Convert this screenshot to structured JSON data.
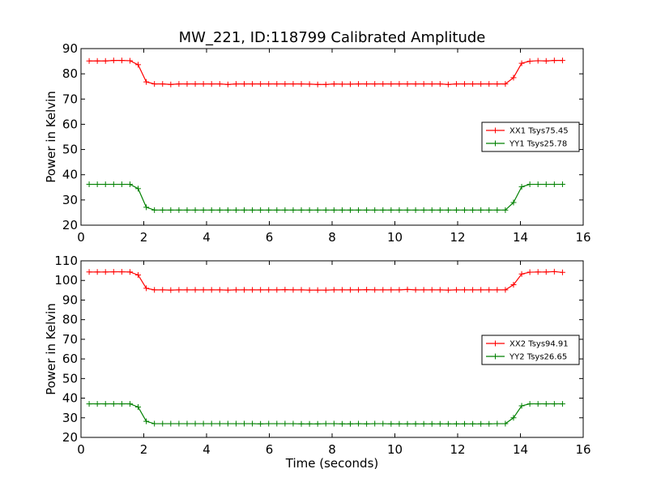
{
  "title": "MW_221, ID:118799 Calibrated Amplitude",
  "chart_data": [
    {
      "type": "line",
      "title": "MW_221, ID:118799 Calibrated Amplitude",
      "xlabel": "",
      "ylabel": "Power in Kelvin",
      "xlim": [
        0,
        16
      ],
      "ylim": [
        20,
        90
      ],
      "xticks": [
        0,
        2,
        4,
        6,
        8,
        10,
        12,
        14,
        16
      ],
      "yticks": [
        20,
        30,
        40,
        50,
        60,
        70,
        80,
        90
      ],
      "grid": false,
      "legend_position": "right",
      "x": [
        0.26,
        0.52,
        0.78,
        1.04,
        1.3,
        1.56,
        1.82,
        2.08,
        2.34,
        2.6,
        2.86,
        3.12,
        3.38,
        3.64,
        3.9,
        4.16,
        4.42,
        4.68,
        4.94,
        5.2,
        5.46,
        5.72,
        5.98,
        6.24,
        6.5,
        6.76,
        7.02,
        7.28,
        7.54,
        7.8,
        8.06,
        8.32,
        8.58,
        8.84,
        9.1,
        9.36,
        9.62,
        9.88,
        10.14,
        10.4,
        10.66,
        10.92,
        11.18,
        11.44,
        11.7,
        11.96,
        12.22,
        12.48,
        12.74,
        13.0,
        13.26,
        13.52,
        13.78,
        14.04,
        14.3,
        14.56,
        14.82,
        15.08,
        15.34
      ],
      "series": [
        {
          "name": "XX1 Tsys75.45",
          "color": "#ff0000",
          "values": [
            85.1,
            85.1,
            85.1,
            85.3,
            85.3,
            85.2,
            83.6,
            76.8,
            76.0,
            76.0,
            75.8,
            76.0,
            76.0,
            76.0,
            76.0,
            76.0,
            76.0,
            75.8,
            76.0,
            76.0,
            76.0,
            76.0,
            76.0,
            76.0,
            76.0,
            76.0,
            76.0,
            75.9,
            75.8,
            75.8,
            76.0,
            75.9,
            75.9,
            76.0,
            76.0,
            76.0,
            76.0,
            76.0,
            76.0,
            76.0,
            76.0,
            76.0,
            76.0,
            76.0,
            75.8,
            76.0,
            76.0,
            76.0,
            76.0,
            76.0,
            76.0,
            76.0,
            78.5,
            84.2,
            85.0,
            85.2,
            85.1,
            85.3,
            85.3
          ]
        },
        {
          "name": "YY1 Tsys25.78",
          "color": "#008000",
          "values": [
            36.2,
            36.2,
            36.2,
            36.2,
            36.2,
            36.2,
            34.5,
            27.1,
            26.0,
            26.0,
            26.0,
            26.0,
            26.0,
            26.0,
            26.0,
            26.0,
            26.0,
            26.0,
            26.0,
            26.0,
            26.0,
            26.0,
            26.0,
            26.0,
            26.0,
            26.0,
            26.0,
            26.0,
            26.0,
            26.0,
            26.0,
            26.0,
            26.0,
            26.0,
            26.0,
            26.0,
            26.0,
            26.0,
            26.0,
            26.0,
            26.0,
            26.0,
            26.0,
            26.0,
            26.0,
            26.0,
            26.0,
            26.0,
            26.0,
            26.0,
            26.0,
            26.0,
            29.0,
            35.2,
            36.2,
            36.2,
            36.2,
            36.2,
            36.2
          ]
        }
      ]
    },
    {
      "type": "line",
      "title": "",
      "xlabel": "Time (seconds)",
      "ylabel": "Power in Kelvin",
      "xlim": [
        0,
        16
      ],
      "ylim": [
        20,
        110
      ],
      "xticks": [
        0,
        2,
        4,
        6,
        8,
        10,
        12,
        14,
        16
      ],
      "yticks": [
        20,
        30,
        40,
        50,
        60,
        70,
        80,
        90,
        100,
        110
      ],
      "grid": false,
      "legend_position": "right",
      "x": [
        0.26,
        0.52,
        0.78,
        1.04,
        1.3,
        1.56,
        1.82,
        2.08,
        2.34,
        2.6,
        2.86,
        3.12,
        3.38,
        3.64,
        3.9,
        4.16,
        4.42,
        4.68,
        4.94,
        5.2,
        5.46,
        5.72,
        5.98,
        6.24,
        6.5,
        6.76,
        7.02,
        7.28,
        7.54,
        7.8,
        8.06,
        8.32,
        8.58,
        8.84,
        9.1,
        9.36,
        9.62,
        9.88,
        10.14,
        10.4,
        10.66,
        10.92,
        11.18,
        11.44,
        11.7,
        11.96,
        12.22,
        12.48,
        12.74,
        13.0,
        13.26,
        13.52,
        13.78,
        14.04,
        14.3,
        14.56,
        14.82,
        15.08,
        15.34
      ],
      "series": [
        {
          "name": "XX2 Tsys94.91",
          "color": "#ff0000",
          "values": [
            104.3,
            104.3,
            104.3,
            104.4,
            104.4,
            104.3,
            102.8,
            96.0,
            95.2,
            95.2,
            95.1,
            95.2,
            95.2,
            95.2,
            95.2,
            95.2,
            95.2,
            95.1,
            95.2,
            95.2,
            95.2,
            95.2,
            95.2,
            95.2,
            95.3,
            95.2,
            95.2,
            95.1,
            95.1,
            95.1,
            95.2,
            95.2,
            95.2,
            95.2,
            95.3,
            95.2,
            95.2,
            95.2,
            95.2,
            95.4,
            95.2,
            95.2,
            95.2,
            95.2,
            95.1,
            95.2,
            95.2,
            95.2,
            95.2,
            95.2,
            95.2,
            95.2,
            97.8,
            103.3,
            104.2,
            104.3,
            104.3,
            104.5,
            104.1
          ]
        },
        {
          "name": "YY2 Tsys26.65",
          "color": "#008000",
          "values": [
            37.1,
            37.1,
            37.1,
            37.1,
            37.1,
            37.1,
            35.5,
            28.2,
            27.0,
            27.0,
            27.0,
            27.0,
            27.0,
            27.0,
            27.0,
            27.0,
            27.0,
            27.0,
            27.0,
            27.0,
            27.0,
            26.9,
            27.0,
            27.0,
            27.0,
            27.0,
            26.9,
            26.9,
            26.9,
            27.0,
            27.0,
            26.9,
            26.9,
            27.0,
            26.9,
            27.0,
            27.0,
            26.9,
            26.9,
            26.9,
            26.9,
            26.9,
            26.9,
            26.9,
            26.9,
            26.9,
            26.9,
            26.9,
            26.9,
            26.9,
            27.0,
            27.0,
            30.0,
            36.1,
            37.1,
            37.1,
            37.1,
            37.1,
            37.1
          ]
        }
      ]
    }
  ]
}
